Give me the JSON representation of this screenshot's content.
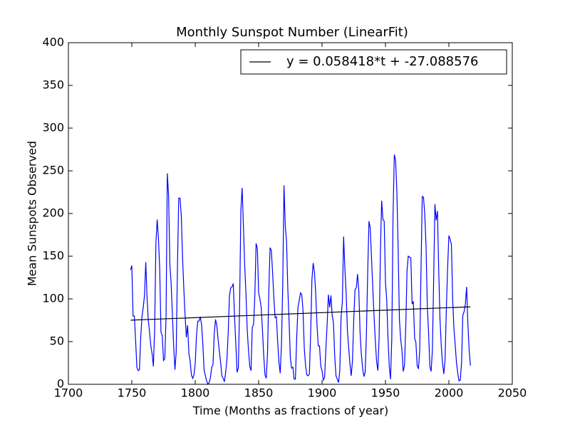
{
  "chart_data": {
    "type": "line",
    "title": "Monthly Sunspot Number (LinearFit)",
    "x_label": "Time (Months as fractions of year)",
    "y_label": "Mean Sunspots Observed",
    "xlim": [
      1700,
      2050
    ],
    "xticks": [
      1700,
      1750,
      1800,
      1850,
      1900,
      1950,
      2000,
      2050
    ],
    "ylim": [
      0,
      400
    ],
    "yticks": [
      0,
      50,
      100,
      150,
      200,
      250,
      300,
      350,
      400
    ],
    "grid": false,
    "legend": "upper right",
    "series": [
      {
        "name": null,
        "color": "#0000ff",
        "x": [
          1749,
          1750,
          1751,
          1752,
          1753,
          1754,
          1755,
          1756,
          1757,
          1758,
          1759,
          1760,
          1761,
          1762,
          1763,
          1764,
          1765,
          1766,
          1767,
          1768,
          1769,
          1770,
          1771,
          1772,
          1773,
          1774,
          1775,
          1776,
          1777,
          1778,
          1779,
          1780,
          1781,
          1782,
          1783,
          1784,
          1785,
          1786,
          1787,
          1788,
          1789,
          1790,
          1791,
          1792,
          1793,
          1794,
          1795,
          1796,
          1797,
          1798,
          1799,
          1800,
          1801,
          1802,
          1803,
          1804,
          1805,
          1806,
          1807,
          1808,
          1809,
          1810,
          1811,
          1812,
          1813,
          1814,
          1815,
          1816,
          1817,
          1818,
          1819,
          1820,
          1821,
          1822,
          1823,
          1824,
          1825,
          1826,
          1827,
          1828,
          1829,
          1830,
          1831,
          1832,
          1833,
          1834,
          1835,
          1836,
          1837,
          1838,
          1839,
          1840,
          1841,
          1842,
          1843,
          1844,
          1845,
          1846,
          1847,
          1848,
          1849,
          1850,
          1851,
          1852,
          1853,
          1854,
          1855,
          1856,
          1857,
          1858,
          1859,
          1860,
          1861,
          1862,
          1863,
          1864,
          1865,
          1866,
          1867,
          1868,
          1869,
          1870,
          1871,
          1872,
          1873,
          1874,
          1875,
          1876,
          1877,
          1878,
          1879,
          1880,
          1881,
          1882,
          1883,
          1884,
          1885,
          1886,
          1887,
          1888,
          1889,
          1890,
          1891,
          1892,
          1893,
          1894,
          1895,
          1896,
          1897,
          1898,
          1899,
          1900,
          1901,
          1902,
          1903,
          1904,
          1905,
          1906,
          1907,
          1908,
          1909,
          1910,
          1911,
          1912,
          1913,
          1914,
          1915,
          1916,
          1917,
          1918,
          1919,
          1920,
          1921,
          1922,
          1923,
          1924,
          1925,
          1926,
          1927,
          1928,
          1929,
          1930,
          1931,
          1932,
          1933,
          1934,
          1935,
          1936,
          1937,
          1938,
          1939,
          1940,
          1941,
          1942,
          1943,
          1944,
          1945,
          1946,
          1947,
          1948,
          1949,
          1950,
          1951,
          1952,
          1953,
          1954,
          1955,
          1956,
          1957,
          1958,
          1959,
          1960,
          1961,
          1962,
          1963,
          1964,
          1965,
          1966,
          1967,
          1968,
          1969,
          1970,
          1971,
          1972,
          1973,
          1974,
          1975,
          1976,
          1977,
          1978,
          1979,
          1980,
          1981,
          1982,
          1983,
          1984,
          1985,
          1986,
          1987,
          1988,
          1989,
          1990,
          1991,
          1992,
          1993,
          1994,
          1995,
          1996,
          1997,
          1998,
          1999,
          2000,
          2001,
          2002,
          2003,
          2004,
          2005,
          2006,
          2007,
          2008,
          2009,
          2010,
          2011,
          2012,
          2013,
          2014,
          2015,
          2016,
          2017
        ],
        "values": [
          134,
          139,
          80,
          80,
          51,
          20,
          16,
          17,
          54,
          79,
          90,
          104,
          143,
          102,
          75,
          61,
          45,
          36,
          21,
          64,
          165,
          193,
          171,
          135,
          61,
          57,
          28,
          30,
          79,
          247,
          221,
          141,
          118,
          82,
          45,
          17,
          38,
          138,
          218,
          218,
          198,
          149,
          112,
          81,
          55,
          69,
          36,
          27,
          11,
          7,
          11,
          24,
          57,
          74,
          74,
          79,
          70,
          47,
          17,
          10,
          4,
          0,
          2,
          8,
          20,
          23,
          59,
          76,
          69,
          53,
          39,
          26,
          10,
          7,
          3,
          14,
          29,
          60,
          104,
          113,
          114,
          118,
          79,
          48,
          14,
          19,
          93,
          204,
          230,
          185,
          139,
          107,
          64,
          40,
          21,
          16,
          67,
          70,
          103,
          165,
          159,
          107,
          100,
          90,
          64,
          34,
          11,
          7,
          36,
          107,
          160,
          157,
          131,
          101,
          78,
          79,
          50,
          26,
          13,
          46,
          116,
          233,
          185,
          168,
          112,
          74,
          31,
          19,
          20,
          6,
          6,
          54,
          90,
          98,
          107,
          105,
          86,
          42,
          22,
          11,
          10,
          12,
          59,
          122,
          142,
          131,
          107,
          70,
          45,
          45,
          21,
          16,
          5,
          8,
          41,
          70,
          105,
          90,
          104,
          81,
          72,
          32,
          10,
          6,
          2,
          16,
          79,
          96,
          173,
          135,
          107,
          63,
          43,
          24,
          10,
          28,
          76,
          111,
          113,
          129,
          109,
          60,
          35,
          19,
          9,
          14,
          60,
          132,
          191,
          183,
          148,
          113,
          80,
          51,
          27,
          16,
          55,
          154,
          215,
          193,
          191,
          119,
          99,
          54,
          21,
          6,
          54,
          200,
          269,
          262,
          225,
          159,
          76,
          53,
          40,
          15,
          22,
          67,
          133,
          150,
          149,
          148,
          94,
          97,
          54,
          49,
          22,
          18,
          39,
          131,
          220,
          219,
          199,
          162,
          91,
          61,
          21,
          15,
          40,
          123,
          211,
          192,
          203,
          133,
          76,
          45,
          25,
          12,
          29,
          88,
          136,
          174,
          170,
          164,
          99,
          65,
          46,
          25,
          13,
          4,
          5,
          25,
          81,
          85,
          94,
          114,
          70,
          40,
          22
        ]
      },
      {
        "name": "y = 0.058418*t + -27.088576",
        "color": "#000000",
        "x": [
          1749,
          2017
        ],
        "values": [
          75.08,
          90.74
        ]
      }
    ]
  }
}
